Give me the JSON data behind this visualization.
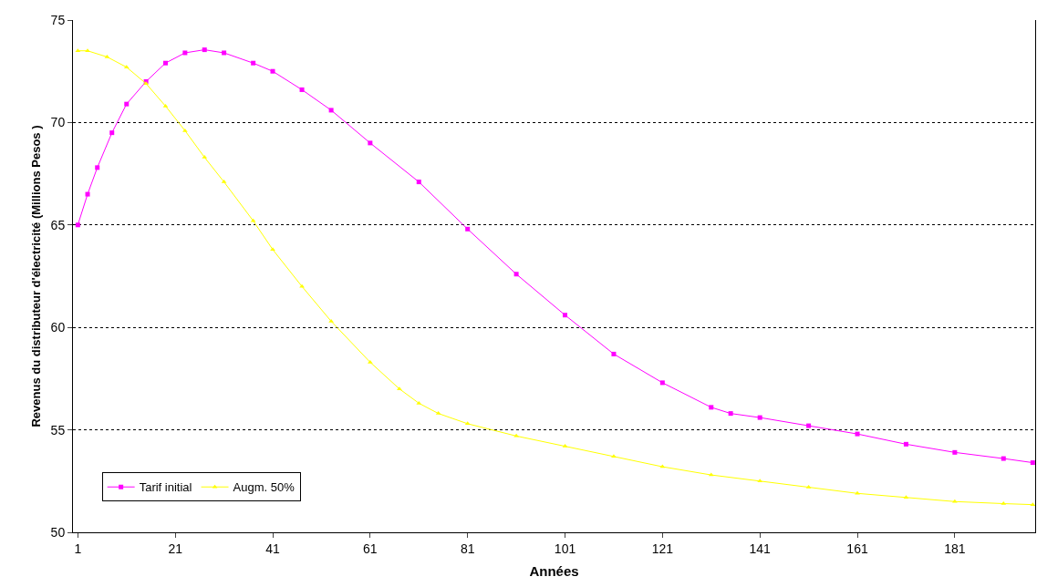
{
  "chart_data": {
    "type": "line",
    "xlabel": "Années",
    "ylabel": "Revenus du distributeur d'électricité (Millions Pesos )",
    "xlim": [
      0,
      197.5
    ],
    "xticks": [
      1,
      21,
      41,
      61,
      81,
      101,
      121,
      141,
      161,
      181
    ],
    "ylim": [
      50,
      75
    ],
    "yticks": [
      50,
      55,
      60,
      65,
      70,
      75
    ],
    "grid": "y",
    "legend": "bottom left",
    "line_style": "solid",
    "series": [
      {
        "name": "Tarif initial",
        "color": "#ff00ff",
        "marker": "square",
        "x": [
          1,
          3,
          5,
          8,
          11,
          15,
          19,
          23,
          27,
          31,
          37,
          41,
          47,
          53,
          61,
          71,
          81,
          91,
          101,
          111,
          121,
          131,
          135,
          141,
          151,
          161,
          171,
          181,
          191,
          197
        ],
        "values": [
          65,
          66.5,
          67.8,
          69.5,
          70.9,
          72.0,
          72.9,
          73.4,
          73.55,
          73.4,
          72.9,
          72.5,
          71.6,
          70.6,
          69.0,
          67.1,
          64.8,
          62.6,
          60.6,
          58.7,
          57.3,
          56.1,
          55.8,
          55.6,
          55.2,
          54.8,
          54.3,
          53.9,
          53.6,
          53.4
        ]
      },
      {
        "name": "Augm. 50%",
        "color": "#ffff00",
        "marker": "triangle",
        "x": [
          1,
          3,
          7,
          11,
          15,
          19,
          23,
          27,
          31,
          37,
          41,
          47,
          53,
          61,
          67,
          71,
          75,
          81,
          91,
          101,
          111,
          121,
          131,
          141,
          151,
          161,
          171,
          181,
          191,
          197
        ],
        "values": [
          73.5,
          73.5,
          73.2,
          72.7,
          71.9,
          70.8,
          69.6,
          68.3,
          67.1,
          65.2,
          63.8,
          62.0,
          60.3,
          58.3,
          57.0,
          56.3,
          55.8,
          55.3,
          54.7,
          54.2,
          53.7,
          53.2,
          52.8,
          52.5,
          52.2,
          51.9,
          51.7,
          51.5,
          51.4,
          51.35
        ]
      }
    ]
  }
}
